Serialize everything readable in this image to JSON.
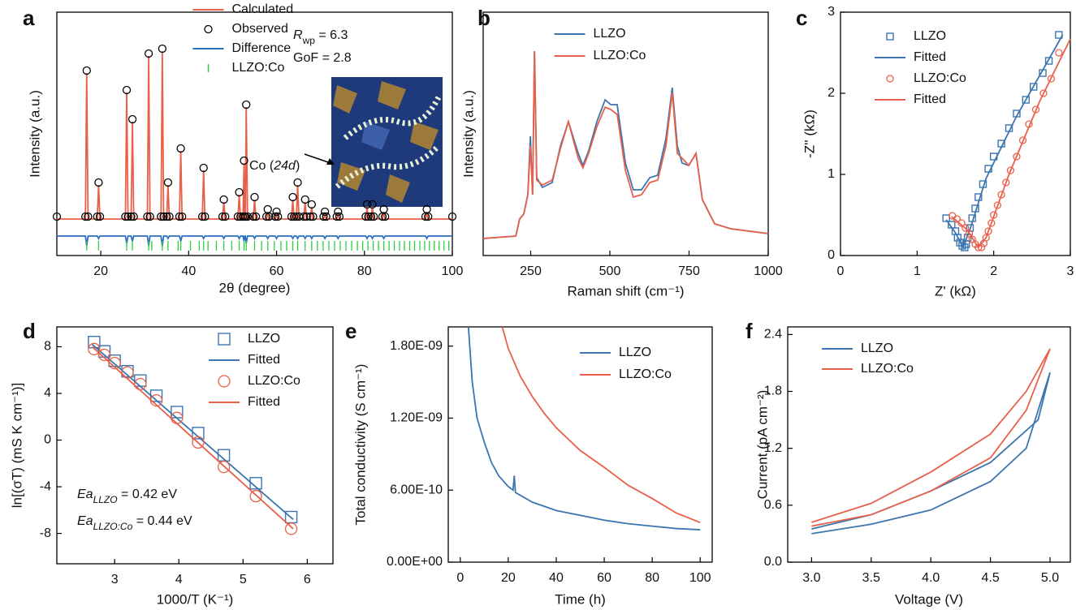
{
  "chart_data": [
    {
      "label": "a",
      "type": "line",
      "xlabel": "2θ (degree)",
      "ylabel": "Intensity (a.u.)",
      "xlim": [
        10,
        100
      ],
      "xticks": [
        20,
        40,
        60,
        80,
        100
      ],
      "ylim": [
        0,
        100
      ],
      "legend": "upper center",
      "annotations": [
        {
          "parts": [
            {
              "text": "R",
              "style": "italic"
            },
            {
              "text": "wp",
              "style": "sub"
            },
            {
              "text": " = 6.3"
            }
          ]
        },
        {
          "parts": [
            {
              "text": "GoF = 2.8"
            }
          ]
        },
        {
          "parts": [
            {
              "text": "Co ("
            },
            {
              "text": "24d",
              "style": "italic"
            },
            {
              "text": ")"
            }
          ]
        }
      ],
      "x": [
        10,
        16.5,
        16.8,
        17.1,
        19.2,
        19.5,
        19.8,
        25.6,
        25.9,
        26.2,
        26.9,
        27.2,
        27.5,
        30.6,
        30.9,
        31.2,
        33.7,
        34.0,
        34.3,
        35.0,
        35.3,
        35.6,
        37.9,
        38.2,
        38.5,
        43.1,
        43.4,
        43.7,
        47.7,
        48.0,
        48.3,
        51.2,
        51.5,
        51.8,
        52.35,
        52.6,
        52.75,
        52.9,
        53.1,
        53.4,
        54.7,
        55.0,
        55.3,
        57.7,
        58.0,
        58.3,
        59.7,
        60.0,
        60.3,
        63.4,
        63.7,
        64.0,
        64.5,
        64.8,
        65.1,
        66.2,
        66.5,
        66.8,
        67.7,
        68.0,
        68.3,
        70.7,
        71.0,
        71.3,
        73.7,
        74.0,
        74.3,
        80.3,
        80.6,
        80.9,
        81.5,
        81.8,
        82.1,
        84.1,
        84.4,
        84.7,
        93.9,
        94.2,
        94.5,
        100
      ],
      "series": [
        {
          "name": "Calculated",
          "color": "#e8604a",
          "mode": "lines",
          "values": [
            15,
            15,
            75,
            15,
            15,
            29,
            15,
            15,
            67,
            15,
            15,
            55,
            15,
            15,
            82,
            15,
            15,
            84,
            15,
            15,
            29,
            15,
            15,
            43,
            15,
            15,
            35,
            15,
            15,
            22,
            15,
            15,
            25,
            15,
            15,
            38,
            15,
            15,
            61,
            15,
            15,
            23,
            15,
            15,
            18,
            15,
            15,
            17,
            15,
            15,
            23,
            15,
            15,
            29,
            15,
            15,
            22,
            15,
            15,
            20,
            15,
            15,
            17,
            15,
            15,
            17,
            15,
            15,
            20,
            15,
            15,
            20,
            15,
            15,
            18,
            15,
            15,
            18,
            15,
            15
          ]
        },
        {
          "name": "Observed",
          "color": "#000000",
          "mode": "circle",
          "values": [
            16,
            16,
            76,
            16,
            16,
            30,
            16,
            16,
            68,
            16,
            16,
            56,
            16,
            16,
            83,
            16,
            16,
            85,
            16,
            16,
            30,
            16,
            16,
            44,
            16,
            16,
            36,
            16,
            16,
            23,
            16,
            16,
            26,
            16,
            16,
            39,
            16,
            16,
            62,
            16,
            16,
            24,
            16,
            16,
            19,
            16,
            16,
            18,
            16,
            16,
            24,
            16,
            16,
            30,
            16,
            16,
            23,
            16,
            16,
            21,
            16,
            16,
            18,
            16,
            16,
            18,
            16,
            16,
            21,
            16,
            16,
            21,
            16,
            16,
            19,
            16,
            16,
            19,
            16,
            16
          ]
        },
        {
          "name": "Difference",
          "color": "#2a6fbf",
          "mode": "lines",
          "values": [
            8,
            8,
            4,
            8,
            8,
            7,
            8,
            8,
            5,
            8,
            8,
            6,
            8,
            8,
            4,
            8,
            8,
            4,
            8,
            8,
            7,
            8,
            8,
            6,
            8,
            8,
            7,
            8,
            8,
            7,
            8,
            8,
            7,
            8,
            8,
            6,
            8,
            8,
            5,
            8,
            8,
            7,
            8,
            8,
            7,
            8,
            8,
            7,
            8,
            8,
            7,
            8,
            8,
            7,
            8,
            8,
            7,
            8,
            8,
            7,
            8,
            8,
            7,
            8,
            8,
            7,
            8,
            8,
            7,
            8,
            8,
            7,
            8,
            8,
            7,
            8,
            8,
            7,
            8,
            8
          ]
        },
        {
          "name": "LLZO:Co",
          "color": "#2ecc40",
          "mode": "ticks",
          "x": [
            16.8,
            19.5,
            25.9,
            27.2,
            30.9,
            31.6,
            34.0,
            35.3,
            37.6,
            38.2,
            40.4,
            42.4,
            43.4,
            44.4,
            46.3,
            48.0,
            49.8,
            51.5,
            52.6,
            53.1,
            55.0,
            56.6,
            58.0,
            59.5,
            61.0,
            62.3,
            63.7,
            64.8,
            66.5,
            68.0,
            69.3,
            70.6,
            71.9,
            73.2,
            74.5,
            75.8,
            77.1,
            78.4,
            79.6,
            80.8,
            82.0,
            83.2,
            84.4,
            85.6,
            86.8,
            88.0,
            89.1,
            90.3,
            91.4,
            92.6,
            93.7,
            94.8,
            95.9,
            97.0,
            98.1,
            99.2
          ]
        }
      ]
    },
    {
      "label": "b",
      "type": "line",
      "xlabel": "Raman shift (cm⁻¹)",
      "ylabel": "Intensity (a.u.)",
      "xlim": [
        100,
        1000
      ],
      "xticks": [
        250,
        500,
        750,
        1000
      ],
      "ylim": [
        0,
        100
      ],
      "legend": "upper center",
      "x": [
        100,
        203,
        215,
        228,
        241,
        249,
        256,
        262,
        269,
        287,
        318,
        344,
        369,
        400,
        415,
        433,
        459,
        485,
        503,
        523,
        549,
        574,
        600,
        626,
        651,
        677,
        697,
        713,
        728,
        749,
        772,
        792,
        831,
        882,
        1000
      ],
      "series": [
        {
          "name": "LLZO",
          "color": "#3b75af",
          "mode": "lines",
          "values": [
            7,
            8,
            15,
            17,
            25,
            49,
            25,
            84,
            32,
            28,
            30,
            45,
            55,
            42,
            37,
            43,
            55,
            64,
            62,
            62,
            38,
            27,
            27,
            32,
            33,
            48,
            69,
            45,
            38,
            37,
            42,
            23,
            13,
            11,
            9
          ]
        },
        {
          "name": "LLZO:Co",
          "color": "#e8604a",
          "mode": "lines",
          "values": [
            7,
            8,
            15,
            17,
            25,
            45,
            25,
            84,
            31,
            29,
            31,
            44,
            55,
            40,
            36,
            42,
            53,
            61,
            60,
            58,
            35,
            24,
            25,
            30,
            31,
            45,
            67,
            42,
            40,
            37,
            42,
            23,
            13,
            11,
            9
          ]
        }
      ]
    },
    {
      "label": "c",
      "type": "line",
      "xlabel": "Z' (kΩ)",
      "ylabel": "-Z'' (kΩ)",
      "xlim": [
        0,
        3
      ],
      "xticks": [
        0,
        1,
        2,
        3
      ],
      "ylim": [
        0,
        3
      ],
      "yticks": [
        0,
        1,
        2,
        3
      ],
      "legend": "upper left",
      "series": [
        {
          "name": "LLZO",
          "color": "#3b75af",
          "mode": "square",
          "x": [
            1.38,
            1.45,
            1.5,
            1.53,
            1.56,
            1.59,
            1.62,
            1.64,
            1.66,
            1.69,
            1.72,
            1.76,
            1.8,
            1.86,
            1.93,
            2.0,
            2.1,
            2.2,
            2.3,
            2.42,
            2.52,
            2.64,
            2.72,
            2.85
          ],
          "values": [
            0.46,
            0.38,
            0.3,
            0.22,
            0.16,
            0.12,
            0.1,
            0.14,
            0.22,
            0.34,
            0.46,
            0.58,
            0.72,
            0.88,
            1.07,
            1.22,
            1.38,
            1.57,
            1.75,
            1.92,
            2.08,
            2.25,
            2.4,
            2.72
          ]
        },
        {
          "name": "Fitted",
          "color": "#3b75af",
          "mode": "lines",
          "x": [
            1.38,
            1.5,
            1.6,
            1.7,
            1.9,
            2.3,
            2.9
          ],
          "values": [
            0.44,
            0.28,
            0.1,
            0.35,
            0.95,
            1.72,
            2.72
          ]
        },
        {
          "name": "LLZO:Co",
          "color": "#e8604a",
          "mode": "circle",
          "x": [
            1.46,
            1.52,
            1.58,
            1.63,
            1.68,
            1.72,
            1.76,
            1.8,
            1.84,
            1.87,
            1.9,
            1.93,
            1.97,
            2.0,
            2.05,
            2.1,
            2.16,
            2.22,
            2.3,
            2.38,
            2.46,
            2.55,
            2.65,
            2.75,
            2.85
          ],
          "values": [
            0.49,
            0.45,
            0.4,
            0.34,
            0.27,
            0.2,
            0.14,
            0.1,
            0.1,
            0.15,
            0.22,
            0.3,
            0.4,
            0.5,
            0.62,
            0.75,
            0.9,
            1.05,
            1.22,
            1.42,
            1.62,
            1.8,
            2.0,
            2.18,
            2.5
          ]
        },
        {
          "name": "Fitted",
          "color": "#e8604a",
          "mode": "lines",
          "x": [
            1.45,
            1.65,
            1.8,
            1.9,
            2.2,
            2.6,
            3.0
          ],
          "values": [
            0.48,
            0.32,
            0.1,
            0.22,
            1.0,
            1.9,
            2.67
          ]
        }
      ]
    },
    {
      "label": "d",
      "type": "line",
      "xlabel": "1000/T (K⁻¹)",
      "ylabel": "ln[(σT) (mS K cm⁻¹)]",
      "xlim": [
        2.1,
        6.4
      ],
      "xticks": [
        3,
        4,
        5,
        6
      ],
      "ylim": [
        -10.6,
        9.7
      ],
      "yticks": [
        -8,
        -4,
        0,
        4,
        8
      ],
      "legend": "upper right",
      "annotations": [
        {
          "parts": [
            {
              "text": "Ea",
              "style": "italic"
            },
            {
              "text": "LLZO",
              "style": "italic-sub"
            },
            {
              "text": " = 0.42 eV"
            }
          ]
        },
        {
          "parts": [
            {
              "text": "Ea",
              "style": "italic"
            },
            {
              "text": "LLZO:Co",
              "style": "italic-sub"
            },
            {
              "text": " = 0.44 eV"
            }
          ]
        }
      ],
      "series": [
        {
          "name": "LLZO",
          "color": "#3b75af",
          "mode": "square",
          "x": [
            2.68,
            2.84,
            3.0,
            3.2,
            3.4,
            3.65,
            3.97,
            4.3,
            4.7,
            5.2,
            5.75
          ],
          "values": [
            8.4,
            7.6,
            6.8,
            5.9,
            5.1,
            3.8,
            2.4,
            0.6,
            -1.3,
            -3.7,
            -6.6
          ]
        },
        {
          "name": "Fitted",
          "color": "#3b75af",
          "mode": "lines",
          "x": [
            2.65,
            5.78
          ],
          "values": [
            8.2,
            -6.8
          ]
        },
        {
          "name": "LLZO:Co",
          "color": "#e8604a",
          "mode": "circle",
          "x": [
            2.68,
            2.84,
            3.0,
            3.2,
            3.4,
            3.65,
            3.97,
            4.3,
            4.7,
            5.2,
            5.75
          ],
          "values": [
            7.8,
            7.3,
            6.6,
            5.8,
            4.8,
            3.4,
            1.9,
            -0.2,
            -2.3,
            -4.8,
            -7.6
          ]
        },
        {
          "name": "Fitted",
          "color": "#e8604a",
          "mode": "lines",
          "x": [
            2.65,
            5.78
          ],
          "values": [
            8.0,
            -7.6
          ]
        }
      ]
    },
    {
      "label": "e",
      "type": "line",
      "xlabel": "Time (h)",
      "ylabel": "Total conductivity (S cm⁻¹)",
      "xlim": [
        -5,
        105
      ],
      "xticks": [
        0,
        20,
        40,
        60,
        80,
        100
      ],
      "ylim": [
        0,
        1.96e-09
      ],
      "yticks": [
        {
          "value": 0,
          "label": "0.00E+00"
        },
        {
          "value": 6e-10,
          "label": "6.00E-10"
        },
        {
          "value": 1.2e-09,
          "label": "1.20E-09"
        },
        {
          "value": 1.8e-09,
          "label": "1.80E-09"
        }
      ],
      "legend": "upper right",
      "series": [
        {
          "name": "LLZO",
          "color": "#3b75af",
          "mode": "lines",
          "x": [
            3.4,
            5,
            7,
            10,
            13,
            16,
            20,
            22,
            22.5,
            23,
            30,
            40,
            50,
            60,
            70,
            80,
            90,
            100
          ],
          "values": [
            1.96e-09,
            1.5e-09,
            1.2e-09,
            1e-09,
            8.3e-10,
            7.2e-10,
            6.3e-10,
            6e-10,
            7.2e-10,
            5.8e-10,
            5e-10,
            4.3e-10,
            3.9e-10,
            3.5e-10,
            3.2e-10,
            3e-10,
            2.8e-10,
            2.7e-10
          ]
        },
        {
          "name": "LLZO:Co",
          "color": "#e8604a",
          "mode": "lines",
          "x": [
            17.5,
            20,
            25,
            30,
            35,
            40,
            50,
            60,
            70,
            80,
            90,
            100
          ],
          "values": [
            1.96e-09,
            1.78e-09,
            1.55e-09,
            1.38e-09,
            1.24e-09,
            1.12e-09,
            9.3e-10,
            7.9e-10,
            6.4e-10,
            5.3e-10,
            4.1e-10,
            3.3e-10
          ]
        }
      ]
    },
    {
      "label": "f",
      "type": "line",
      "xlabel": "Voltage (V)",
      "ylabel": "Current (pA cm⁻²)",
      "xlim": [
        2.8,
        5.17
      ],
      "xticks": [
        {
          "value": 3,
          "label": "3.0"
        },
        3.5,
        {
          "value": 4,
          "label": "4.0"
        },
        4.5,
        {
          "value": 5,
          "label": "5.0"
        }
      ],
      "ylim": [
        0,
        2.48
      ],
      "yticks": [
        {
          "value": 0,
          "label": "0.0"
        },
        0.6,
        1.2,
        1.8,
        2.4
      ],
      "legend": "upper left",
      "series": [
        {
          "name": "LLZO",
          "color": "#3b75af",
          "mode": "lines",
          "x": [
            3.0,
            3.5,
            4.0,
            4.5,
            4.8,
            5.0,
            4.9,
            4.5,
            4.0,
            3.5,
            3.0
          ],
          "values": [
            0.3,
            0.4,
            0.55,
            0.85,
            1.2,
            2.0,
            1.5,
            1.05,
            0.75,
            0.5,
            0.35
          ]
        },
        {
          "name": "LLZO:Co",
          "color": "#e8604a",
          "mode": "lines",
          "x": [
            3.0,
            3.5,
            4.0,
            4.5,
            4.8,
            5.0,
            4.8,
            4.5,
            4.0,
            3.5,
            3.0
          ],
          "values": [
            0.38,
            0.5,
            0.75,
            1.1,
            1.6,
            2.25,
            1.8,
            1.35,
            0.95,
            0.62,
            0.42
          ]
        }
      ]
    }
  ]
}
